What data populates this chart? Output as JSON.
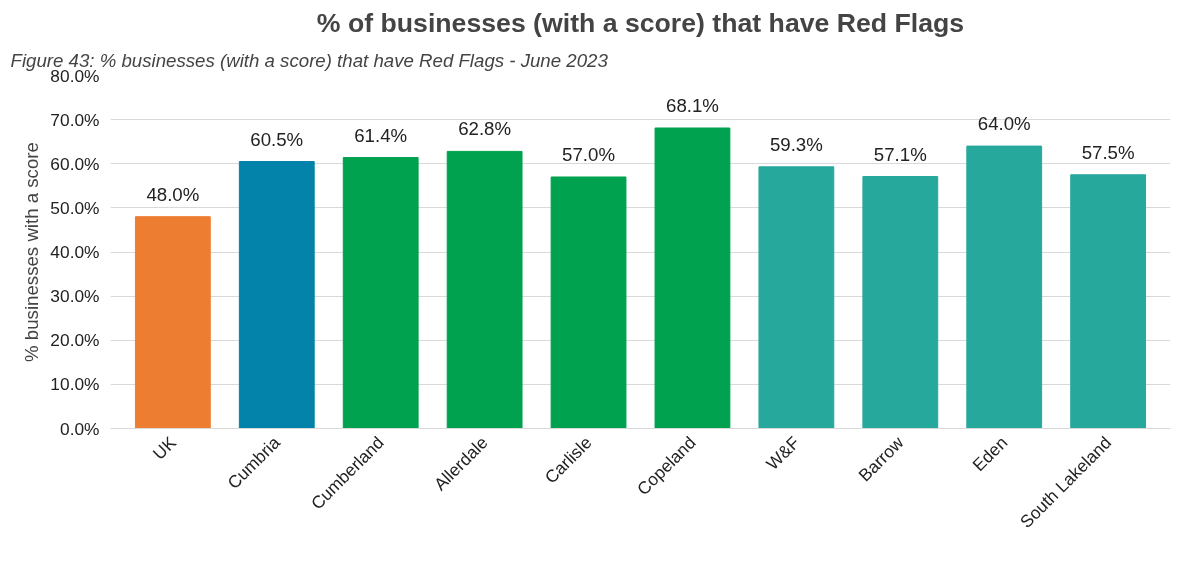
{
  "chart_data": {
    "type": "bar",
    "title": "% of businesses (with a score) that have Red Flags",
    "ylabel": "% businesses with a score",
    "annotations": [
      "Figure 43: % businesses (with a score) that have Red Flags - June 2023"
    ],
    "categories": [
      "UK",
      "Cumbria",
      "Cumberland",
      "Allerdale",
      "Carlisle",
      "Copeland",
      "W&F",
      "Barrow",
      "Eden",
      "South Lakeland"
    ],
    "values": [
      48.0,
      60.5,
      61.4,
      62.8,
      57.0,
      68.1,
      59.3,
      57.1,
      64.0,
      57.5
    ],
    "value_labels": [
      "48.0%",
      "60.5%",
      "61.4%",
      "62.8%",
      "57.0%",
      "68.1%",
      "59.3%",
      "57.1%",
      "64.0%",
      "57.5%"
    ],
    "colors": [
      "#ed7d31",
      "#0382aa",
      "#00a14f",
      "#00a14f",
      "#00a14f",
      "#00a14f",
      "#26a89c",
      "#26a89c",
      "#26a89c",
      "#26a89c"
    ],
    "ylim": [
      0,
      80
    ],
    "yticks": [
      {
        "value": 0,
        "label": "0.0%"
      },
      {
        "value": 10,
        "label": "10.0%"
      },
      {
        "value": 20,
        "label": "20.0%"
      },
      {
        "value": 30,
        "label": "30.0%"
      },
      {
        "value": 40,
        "label": "40.0%"
      },
      {
        "value": 50,
        "label": "50.0%"
      },
      {
        "value": 60,
        "label": "60.0%"
      },
      {
        "value": 70,
        "label": "70.0%"
      },
      {
        "value": 80,
        "label": "80.0%"
      }
    ],
    "grid": "y"
  }
}
